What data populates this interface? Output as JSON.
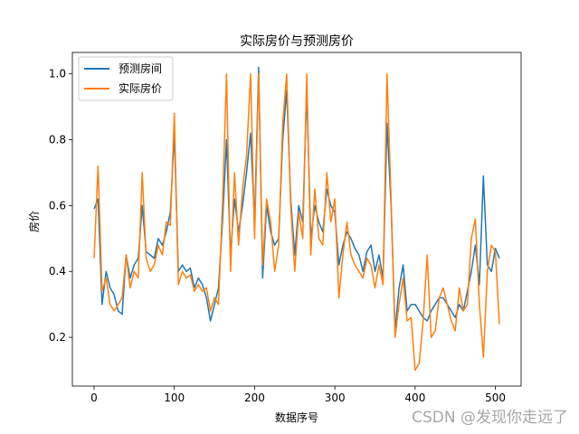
{
  "chart_data": {
    "type": "line",
    "title": "实际房价与预测房价",
    "xlabel": "数据序号",
    "ylabel": "房价",
    "xlim": [
      -27,
      532
    ],
    "ylim": [
      0.052,
      1.065
    ],
    "xticks": [
      0,
      100,
      200,
      300,
      400,
      500
    ],
    "yticks": [
      0.2,
      0.4,
      0.6,
      0.8,
      1.0
    ],
    "ytick_labels": [
      "0.2",
      "0.4",
      "0.6",
      "0.8",
      "1.0"
    ],
    "legend_position": "upper-left",
    "grid": false,
    "x": [
      0,
      5,
      10,
      15,
      20,
      25,
      30,
      35,
      40,
      45,
      50,
      55,
      60,
      65,
      70,
      75,
      80,
      85,
      90,
      95,
      100,
      105,
      110,
      115,
      120,
      125,
      130,
      135,
      140,
      145,
      150,
      155,
      160,
      165,
      170,
      175,
      180,
      185,
      190,
      195,
      200,
      205,
      210,
      215,
      220,
      225,
      230,
      235,
      240,
      245,
      250,
      255,
      260,
      265,
      270,
      275,
      280,
      285,
      290,
      295,
      300,
      305,
      310,
      315,
      320,
      325,
      330,
      335,
      340,
      345,
      350,
      355,
      360,
      365,
      370,
      375,
      380,
      385,
      390,
      395,
      400,
      405,
      410,
      415,
      420,
      425,
      430,
      435,
      440,
      445,
      450,
      455,
      460,
      465,
      470,
      475,
      480,
      485,
      490,
      495,
      500,
      505
    ],
    "series": [
      {
        "name": "预测房间",
        "color": "#1f77b4",
        "values": [
          0.59,
          0.62,
          0.3,
          0.4,
          0.35,
          0.33,
          0.28,
          0.27,
          0.45,
          0.38,
          0.42,
          0.44,
          0.6,
          0.46,
          0.45,
          0.44,
          0.5,
          0.48,
          0.52,
          0.58,
          0.82,
          0.4,
          0.42,
          0.4,
          0.41,
          0.35,
          0.38,
          0.36,
          0.32,
          0.25,
          0.3,
          0.35,
          0.55,
          0.8,
          0.45,
          0.62,
          0.52,
          0.6,
          0.7,
          0.82,
          0.55,
          1.02,
          0.38,
          0.6,
          0.52,
          0.48,
          0.5,
          0.8,
          0.95,
          0.62,
          0.45,
          0.6,
          0.55,
          0.95,
          0.5,
          0.6,
          0.55,
          0.52,
          0.65,
          0.6,
          0.58,
          0.42,
          0.48,
          0.52,
          0.5,
          0.47,
          0.45,
          0.4,
          0.46,
          0.48,
          0.4,
          0.45,
          0.38,
          0.85,
          0.6,
          0.22,
          0.35,
          0.42,
          0.28,
          0.3,
          0.3,
          0.28,
          0.26,
          0.25,
          0.28,
          0.3,
          0.32,
          0.32,
          0.3,
          0.28,
          0.26,
          0.3,
          0.28,
          0.34,
          0.4,
          0.48,
          0.36,
          0.69,
          0.42,
          0.4,
          0.47,
          0.44
        ]
      },
      {
        "name": "实际房价",
        "color": "#ff7f0e",
        "values": [
          0.44,
          0.72,
          0.34,
          0.38,
          0.3,
          0.28,
          0.3,
          0.32,
          0.45,
          0.35,
          0.4,
          0.38,
          0.7,
          0.44,
          0.4,
          0.42,
          0.48,
          0.45,
          0.55,
          0.54,
          0.88,
          0.36,
          0.4,
          0.38,
          0.39,
          0.34,
          0.36,
          0.34,
          0.35,
          0.28,
          0.32,
          0.3,
          0.6,
          1.0,
          0.4,
          0.7,
          0.48,
          0.65,
          0.75,
          1.0,
          0.5,
          1.0,
          0.42,
          0.62,
          0.55,
          0.4,
          0.48,
          0.85,
          1.0,
          0.6,
          0.4,
          0.58,
          0.5,
          1.0,
          0.45,
          0.65,
          0.5,
          0.48,
          0.7,
          0.55,
          0.62,
          0.32,
          0.45,
          0.55,
          0.45,
          0.42,
          0.4,
          0.38,
          0.44,
          0.42,
          0.35,
          0.42,
          0.36,
          1.0,
          0.62,
          0.2,
          0.3,
          0.38,
          0.25,
          0.26,
          0.1,
          0.12,
          0.25,
          0.45,
          0.2,
          0.22,
          0.32,
          0.35,
          0.3,
          0.25,
          0.22,
          0.35,
          0.28,
          0.3,
          0.5,
          0.56,
          0.3,
          0.14,
          0.4,
          0.48,
          0.46,
          0.24
        ]
      }
    ]
  },
  "watermark": "CSDN @发现你走远了"
}
